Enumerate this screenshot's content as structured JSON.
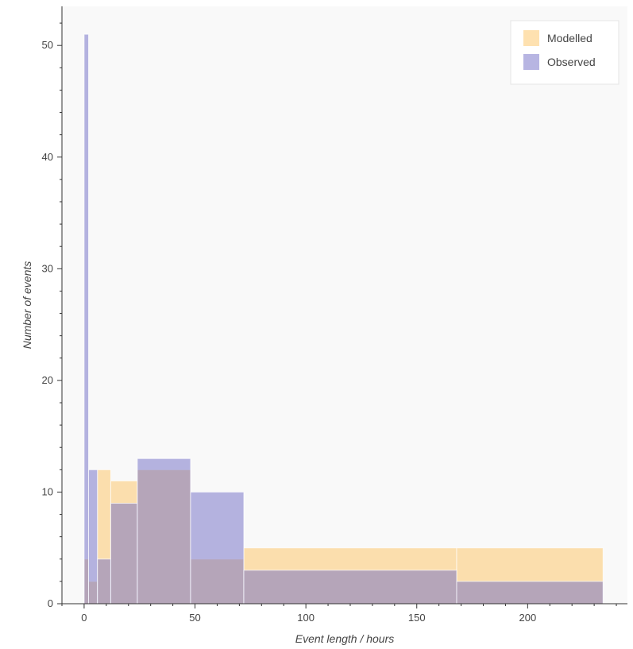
{
  "chart_data": {
    "type": "bar",
    "title": "",
    "xlabel": "Event length / hours",
    "ylabel": "Number of events",
    "xlim": [
      -10,
      245
    ],
    "ylim": [
      0,
      53.5
    ],
    "xticks": [
      0,
      50,
      100,
      150,
      200
    ],
    "yticks": [
      0,
      10,
      20,
      30,
      40,
      50
    ],
    "grid": false,
    "legend_position": "top-right",
    "series": [
      {
        "name": "Modelled",
        "color": "#fdc96f",
        "bins": [
          {
            "x0": 0,
            "x1": 2,
            "count": 4
          },
          {
            "x0": 2,
            "x1": 6,
            "count": 2
          },
          {
            "x0": 6,
            "x1": 12,
            "count": 12
          },
          {
            "x0": 12,
            "x1": 24,
            "count": 11
          },
          {
            "x0": 24,
            "x1": 48,
            "count": 12
          },
          {
            "x0": 48,
            "x1": 72,
            "count": 4
          },
          {
            "x0": 72,
            "x1": 168,
            "count": 5
          },
          {
            "x0": 168,
            "x1": 234,
            "count": 5
          }
        ]
      },
      {
        "name": "Observed",
        "color": "#6f6bc6",
        "bins": [
          {
            "x0": 0,
            "x1": 2,
            "count": 51
          },
          {
            "x0": 2,
            "x1": 6,
            "count": 12
          },
          {
            "x0": 6,
            "x1": 12,
            "count": 4
          },
          {
            "x0": 12,
            "x1": 24,
            "count": 9
          },
          {
            "x0": 24,
            "x1": 48,
            "count": 13
          },
          {
            "x0": 48,
            "x1": 72,
            "count": 10
          },
          {
            "x0": 72,
            "x1": 168,
            "count": 3
          },
          {
            "x0": 168,
            "x1": 234,
            "count": 2
          }
        ]
      }
    ]
  }
}
